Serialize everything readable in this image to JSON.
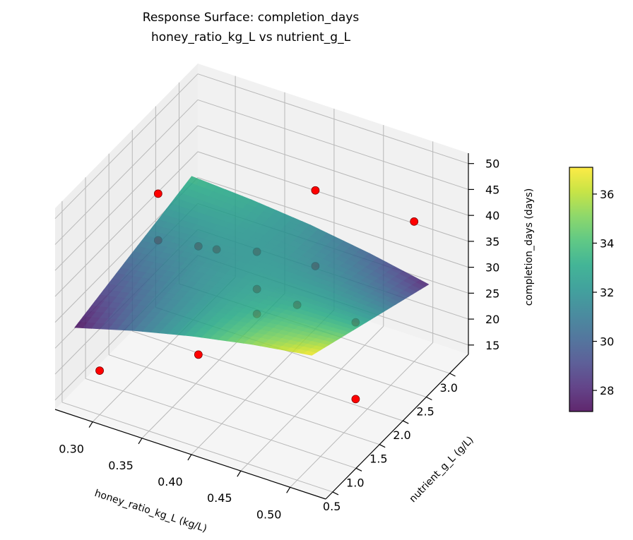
{
  "chart_data": {
    "type": "surface",
    "title": "Response Surface: completion_days",
    "subtitle": "honey_ratio_kg_L vs nutrient_g_L",
    "xlabel": "honey_ratio_kg_L (kg/L)",
    "ylabel": "nutrient_g_L (g/L)",
    "zlabel": "completion_days (days)",
    "xlim": [
      0.262,
      0.536
    ],
    "ylim": [
      0.35,
      3.4
    ],
    "zlim": [
      13.2,
      52
    ],
    "xticks": [
      "0.30",
      "0.35",
      "0.40",
      "0.45",
      "0.50"
    ],
    "yticks": [
      "0.5",
      "1.0",
      "1.5",
      "2.0",
      "2.5",
      "3.0"
    ],
    "zticks": [
      "15",
      "20",
      "25",
      "30",
      "35",
      "40",
      "45",
      "50"
    ],
    "grid": true,
    "colormap": "viridis",
    "surface_alpha": 0.85,
    "colorbar": {
      "range": [
        27.14,
        37.09
      ],
      "ticks": [
        "28",
        "30",
        "32",
        "34",
        "36"
      ],
      "placement": "right"
    },
    "surface": {
      "x": [
        0.27,
        0.33,
        0.39,
        0.45,
        0.51
      ],
      "y": [
        0.6,
        1.225,
        1.85,
        2.475,
        3.1
      ],
      "z": [
        [
          27.2,
          30.4,
          33.1,
          35.3,
          37.0
        ],
        [
          28.8,
          31.0,
          32.7,
          34.0,
          34.7
        ],
        [
          30.4,
          31.6,
          32.4,
          32.6,
          32.4
        ],
        [
          31.9,
          32.2,
          32.0,
          31.3,
          30.1
        ],
        [
          33.5,
          32.8,
          31.7,
          30.0,
          27.8
        ]
      ]
    },
    "points": {
      "color": "#ff0000",
      "x": [
        0.3,
        0.3,
        0.3,
        0.4,
        0.4,
        0.5,
        0.5,
        0.5,
        0.4,
        0.3,
        0.4,
        0.4,
        0.4,
        0.4,
        0.5
      ],
      "y": [
        0.5,
        1.75,
        1.75,
        0.5,
        3.0,
        3.0,
        1.75,
        1.75,
        0.5,
        3.0,
        1.75,
        1.75,
        1.75,
        3.0,
        0.5
      ],
      "z": [
        21.7,
        44.4,
        35.4,
        31.1,
        39.9,
        40.2,
        17.4,
        32.2,
        52.0,
        22.2,
        39.5,
        32.3,
        27.5,
        25.3,
        47.0
      ]
    }
  }
}
